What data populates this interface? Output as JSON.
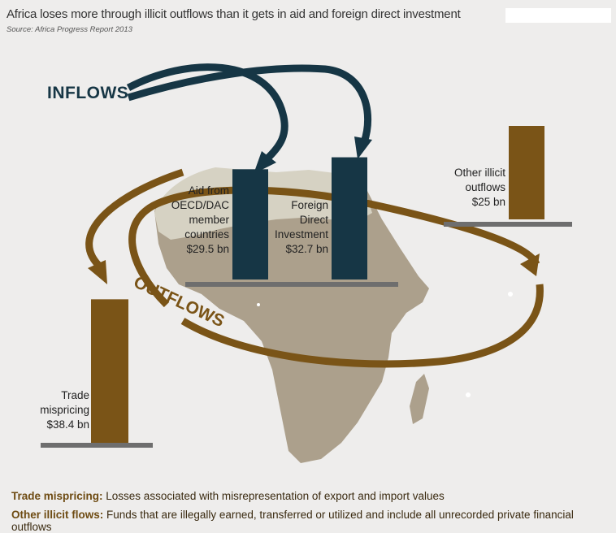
{
  "title": "Africa loses more through illicit outflows than it gets in aid and foreign direct investment",
  "source": "Source: Africa Progress Report 2013",
  "arrow_labels": {
    "inflows": "INFLOWS",
    "outflows": "OUTFLOWS"
  },
  "colors": {
    "inflow": "#163645",
    "outflow": "#7a5417",
    "baseline": "#6e6e6e",
    "map_north": "#d6d2c3",
    "map_south": "#aca08c",
    "background": "#eeedec"
  },
  "chart_data": {
    "type": "bar",
    "unit": "$ bn",
    "groups": [
      {
        "group": "INFLOWS",
        "items": [
          {
            "label_lines": [
              "Aid from",
              "OECD/DAC",
              "member",
              "countries"
            ],
            "value_label": "$29.5 bn",
            "value": 29.5
          },
          {
            "label_lines": [
              "Foreign",
              "Direct",
              "Investment"
            ],
            "value_label": "$32.7 bn",
            "value": 32.7
          }
        ]
      },
      {
        "group": "OUTFLOWS",
        "items": [
          {
            "label_lines": [
              "Trade",
              "mispricing"
            ],
            "value_label": "$38.4 bn",
            "value": 38.4
          },
          {
            "label_lines": [
              "Other illicit",
              "outflows"
            ],
            "value_label": "$25 bn",
            "value": 25
          }
        ]
      }
    ]
  },
  "footnotes": [
    {
      "term": "Trade mispricing:",
      "text": " Losses associated with misrepresentation of export and import values"
    },
    {
      "term": "Other illicit flows:",
      "text": " Funds that are illegally earned, transferred or utilized and include all unrecorded private financial outflows"
    }
  ]
}
